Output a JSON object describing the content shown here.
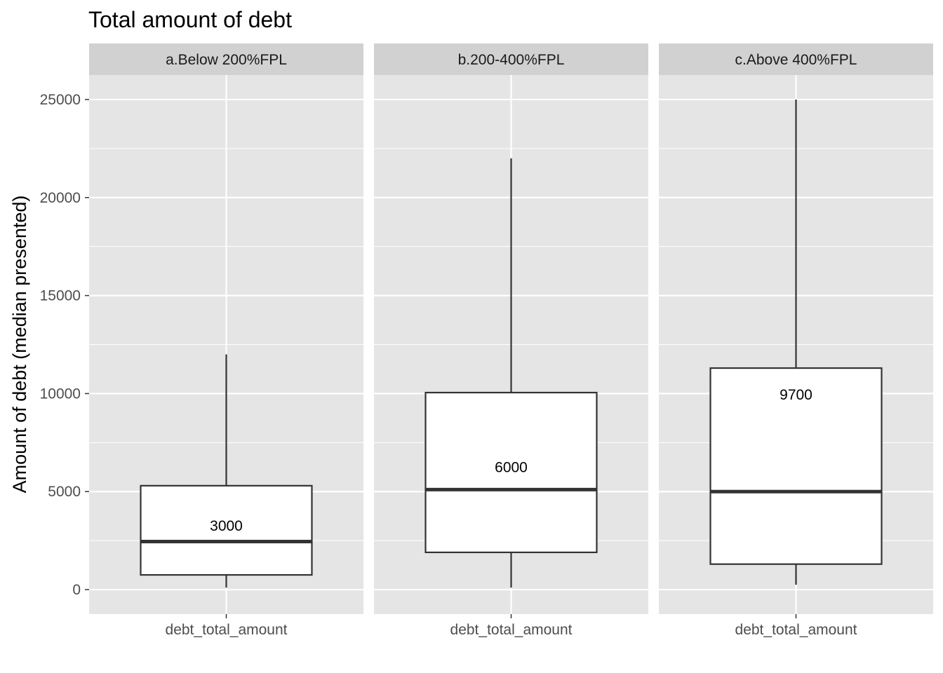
{
  "chart_data": {
    "type": "box",
    "title": "Total amount of debt",
    "xlabel": "",
    "ylabel": "Amount of debt (median presented)",
    "ylim": [
      -1250,
      26250
    ],
    "yticks": [
      0,
      5000,
      10000,
      15000,
      20000,
      25000
    ],
    "grid": true,
    "colors": {
      "panel_bg": "#e5e5e5",
      "strip_bg": "#d1d1d1",
      "grid": "#ffffff",
      "box_fill": "#ffffff",
      "box_stroke": "#333333"
    },
    "panels": [
      {
        "strip_label": "a.Below 200%FPL",
        "category": "debt_total_amount",
        "whisker_low": 100,
        "q1": 750,
        "median": 2450,
        "q3": 5300,
        "whisker_high": 12000,
        "label": "3000",
        "label_y": 3250
      },
      {
        "strip_label": "b.200-400%FPL",
        "category": "debt_total_amount",
        "whisker_low": 100,
        "q1": 1900,
        "median": 5100,
        "q3": 10050,
        "whisker_high": 22000,
        "label": "6000",
        "label_y": 6250
      },
      {
        "strip_label": "c.Above 400%FPL",
        "category": "debt_total_amount",
        "whisker_low": 250,
        "q1": 1300,
        "median": 5000,
        "q3": 11300,
        "whisker_high": 25000,
        "label": "9700",
        "label_y": 9950
      }
    ]
  }
}
